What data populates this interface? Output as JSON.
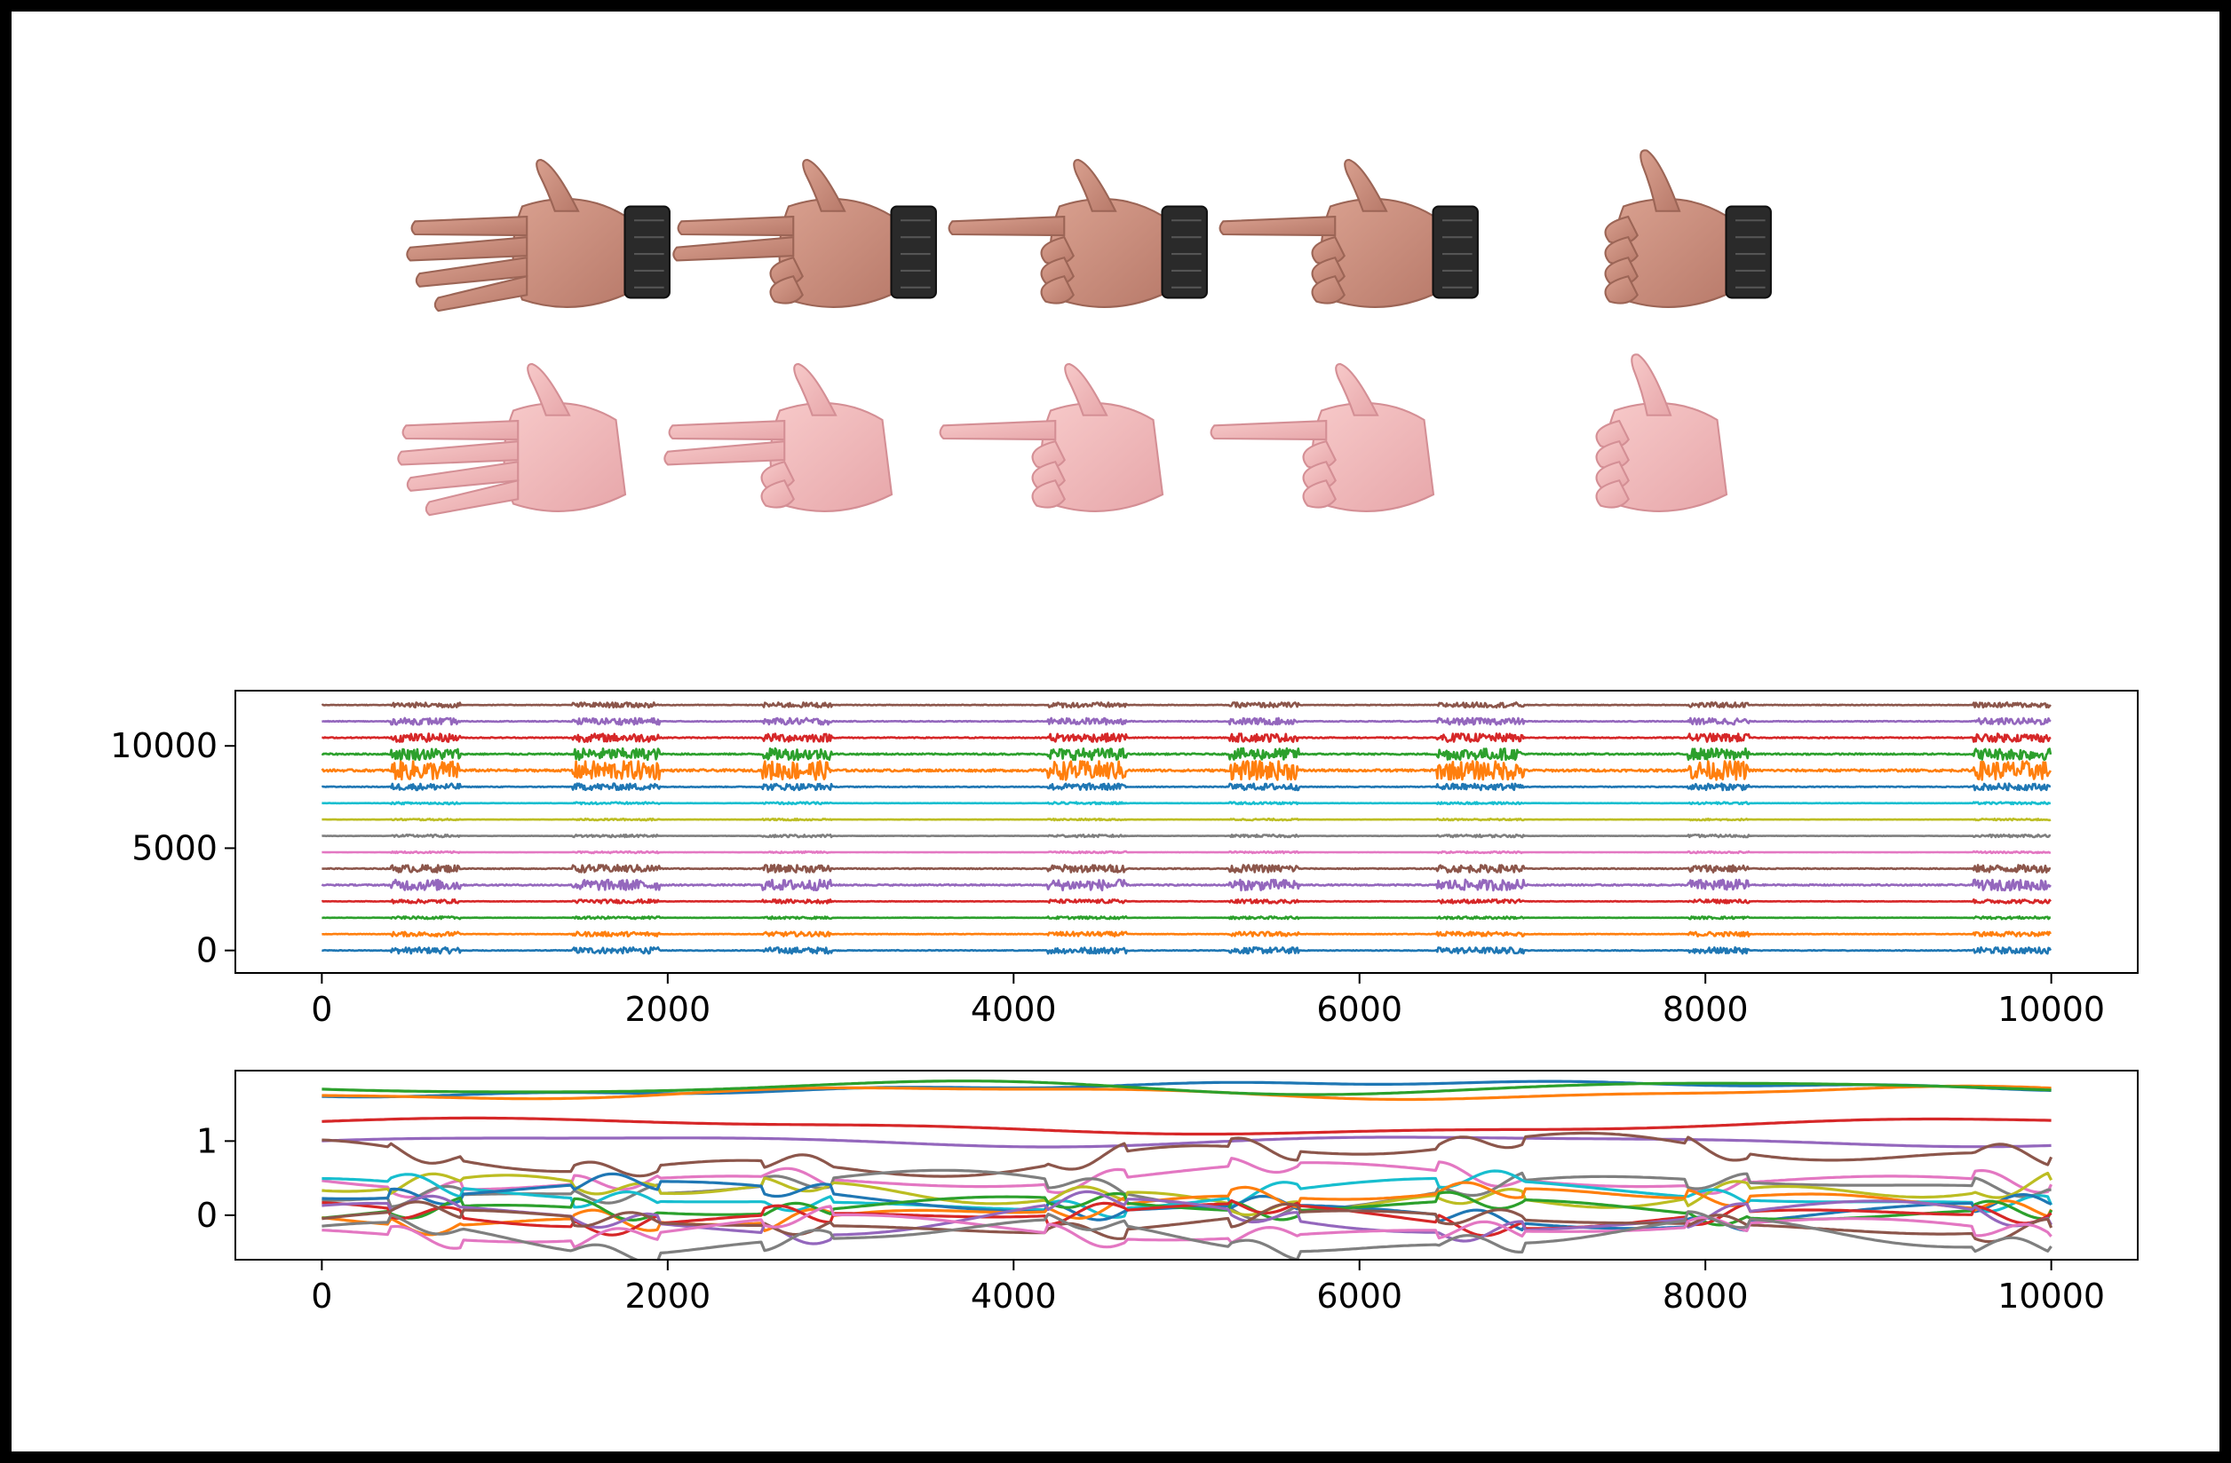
{
  "figure": {
    "hand_rows": [
      {
        "row": "photo",
        "description_icon": "real-hand-photo-with-sensor-band",
        "count": 5
      },
      {
        "row": "render",
        "description_icon": "rendered-3d-hand",
        "count": 5
      }
    ],
    "gestures": [
      "open-palm",
      "ring-pinky-flexed",
      "middle-ring-pinky-flexed",
      "index-point",
      "thumb-up-fist"
    ]
  },
  "chart_data": [
    {
      "type": "line",
      "name": "emg_channels",
      "xlim": [
        -500,
        10500
      ],
      "ylim": [
        -1100,
        12700
      ],
      "xticks": [
        0,
        2000,
        4000,
        6000,
        8000,
        10000
      ],
      "yticks": [
        0,
        5000,
        10000
      ],
      "grid": false,
      "channel_offsets": [
        0,
        800,
        1600,
        2400,
        3200,
        4000,
        4800,
        5600,
        6400,
        7200,
        8000,
        8800,
        9600,
        10400,
        11200,
        12000
      ],
      "active_bursts": [
        [
          400,
          800
        ],
        [
          1450,
          1950
        ],
        [
          2550,
          2950
        ],
        [
          4200,
          4650
        ],
        [
          5250,
          5650
        ],
        [
          6450,
          6950
        ],
        [
          7900,
          8250
        ],
        [
          9550,
          9990
        ]
      ],
      "x_range": [
        0,
        10000
      ]
    },
    {
      "type": "line",
      "name": "joint_angles",
      "xlim": [
        -500,
        10500
      ],
      "ylim": [
        -0.6,
        1.95
      ],
      "xticks": [
        0,
        2000,
        4000,
        6000,
        8000,
        10000
      ],
      "yticks": [
        0,
        1
      ],
      "grid": false,
      "x_range": [
        0,
        10000
      ],
      "series_levels": [
        1.7,
        1.65,
        1.72,
        1.2,
        1.0,
        0.8,
        0.5,
        0.35,
        0.3,
        0.25,
        0.15,
        0.1,
        0.05,
        0.0,
        -0.05,
        -0.1,
        -0.2,
        -0.3
      ]
    }
  ],
  "colors": [
    "#1f77b4",
    "#ff7f0e",
    "#2ca02c",
    "#d62728",
    "#9467bd",
    "#8c564b",
    "#e377c2",
    "#7f7f7f",
    "#bcbd22",
    "#17becf"
  ]
}
